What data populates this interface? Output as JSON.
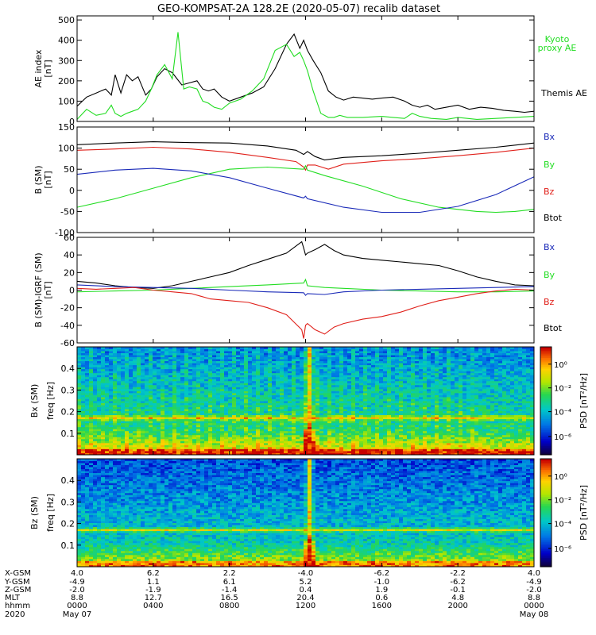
{
  "title": "GEO-KOMPSAT-2A 128.2E (2020-05-07) recalib dataset",
  "colors": {
    "black": "#000000",
    "blue": "#1a2ab8",
    "green": "#22dd22",
    "red": "#e0201a",
    "kyoto": "#22dd22"
  },
  "chart_data": [
    {
      "type": "line",
      "panel": "ae",
      "ylabel_lines": [
        "AE index",
        "[nT]"
      ],
      "ylim": [
        0,
        520
      ],
      "yticks": [
        0,
        100,
        200,
        300,
        400,
        500
      ],
      "x_hours": [
        0,
        24
      ],
      "series": [
        {
          "name": "Themis AE",
          "color": "#000000",
          "x": [
            0,
            0.5,
            1,
            1.5,
            1.8,
            2.0,
            2.3,
            2.6,
            2.9,
            3.2,
            3.6,
            3.9,
            4.2,
            4.6,
            5.0,
            5.5,
            5.9,
            6.3,
            6.6,
            6.9,
            7.2,
            7.6,
            8.0,
            8.6,
            9.2,
            9.8,
            10.4,
            11.0,
            11.4,
            11.7,
            11.9,
            12.1,
            12.4,
            12.8,
            13.2,
            13.6,
            14.0,
            14.5,
            15.0,
            15.5,
            16.0,
            16.6,
            17.2,
            17.6,
            18.0,
            18.4,
            18.8,
            19.4,
            20.0,
            20.6,
            21.2,
            21.8,
            22.4,
            23.0,
            23.5,
            24.0
          ],
          "y": [
            75,
            120,
            140,
            160,
            130,
            230,
            140,
            230,
            200,
            220,
            130,
            160,
            220,
            260,
            240,
            180,
            190,
            200,
            160,
            150,
            160,
            120,
            100,
            120,
            140,
            170,
            260,
            380,
            430,
            360,
            400,
            350,
            300,
            240,
            150,
            120,
            105,
            120,
            115,
            110,
            115,
            120,
            100,
            80,
            70,
            80,
            60,
            70,
            80,
            60,
            70,
            65,
            55,
            50,
            45,
            50
          ]
        },
        {
          "name": "Kyoto proxy AE",
          "color": "#22dd22",
          "x": [
            0,
            0.5,
            1,
            1.5,
            1.8,
            2.0,
            2.3,
            2.6,
            2.9,
            3.2,
            3.6,
            3.9,
            4.2,
            4.6,
            5.0,
            5.3,
            5.6,
            5.9,
            6.3,
            6.6,
            6.9,
            7.2,
            7.6,
            8.0,
            8.6,
            9.2,
            9.8,
            10.4,
            11.0,
            11.4,
            11.7,
            11.9,
            12.1,
            12.4,
            12.8,
            13.2,
            13.5,
            13.8,
            14.2,
            15.0,
            16.0,
            16.6,
            17.2,
            17.6,
            18.0,
            18.6,
            19.4,
            20.0,
            21.0,
            22.0,
            23.0,
            24.0
          ],
          "y": [
            10,
            60,
            30,
            40,
            80,
            40,
            25,
            40,
            50,
            60,
            100,
            160,
            230,
            280,
            210,
            440,
            160,
            170,
            160,
            100,
            90,
            70,
            60,
            90,
            110,
            150,
            210,
            350,
            380,
            320,
            340,
            300,
            250,
            150,
            40,
            20,
            20,
            30,
            20,
            20,
            25,
            20,
            15,
            40,
            25,
            15,
            10,
            20,
            10,
            15,
            20,
            25
          ]
        }
      ],
      "legend_lines": [
        "Themis AE"
      ],
      "kyoto_lines": [
        "Kyoto",
        "proxy AE"
      ]
    },
    {
      "type": "line",
      "panel": "b_sm",
      "ylabel_lines": [
        "B (SM)",
        "[nT]"
      ],
      "ylim": [
        -100,
        150
      ],
      "yticks": [
        -100,
        -50,
        0,
        50,
        100,
        150
      ],
      "x_hours": [
        0,
        24
      ],
      "series": [
        {
          "name": "Btot",
          "color": "#000000",
          "x": [
            0,
            2,
            4,
            6,
            8,
            10,
            11.5,
            11.9,
            12.1,
            12.5,
            13.0,
            14.0,
            16.0,
            18.0,
            20.0,
            22.0,
            24.0
          ],
          "y": [
            108,
            112,
            115,
            113,
            112,
            105,
            95,
            85,
            92,
            80,
            72,
            78,
            82,
            88,
            95,
            102,
            112
          ]
        },
        {
          "name": "Bz",
          "color": "#e0201a",
          "x": [
            0,
            2,
            4,
            6,
            8,
            10,
            11.5,
            11.9,
            12.0,
            12.1,
            12.5,
            13.2,
            14.0,
            16.0,
            18.0,
            20.0,
            22.0,
            24.0
          ],
          "y": [
            95,
            98,
            102,
            98,
            90,
            78,
            68,
            55,
            48,
            60,
            60,
            50,
            62,
            70,
            75,
            82,
            90,
            100
          ]
        },
        {
          "name": "By",
          "color": "#22dd22",
          "x": [
            0,
            2,
            4,
            6,
            8,
            10,
            11.9,
            12.0,
            12.1,
            13.0,
            15.0,
            17.0,
            19.0,
            21.0,
            22.0,
            23.0,
            24.0
          ],
          "y": [
            -40,
            -20,
            5,
            30,
            50,
            55,
            50,
            58,
            48,
            35,
            10,
            -20,
            -40,
            -50,
            -52,
            -50,
            -45
          ]
        },
        {
          "name": "Bx",
          "color": "#1a2ab8",
          "x": [
            0,
            2,
            4,
            6,
            8,
            10,
            11.9,
            12.0,
            12.1,
            14.0,
            16.0,
            18.0,
            20.0,
            22.0,
            24.0
          ],
          "y": [
            38,
            48,
            52,
            46,
            30,
            5,
            -18,
            -14,
            -20,
            -40,
            -52,
            -52,
            -38,
            -10,
            32
          ]
        }
      ],
      "legend": [
        "Bx",
        "By",
        "Bz",
        "Btot"
      ]
    },
    {
      "type": "line",
      "panel": "b_igrf",
      "ylabel_lines": [
        "B (SM)-IGRF (SM)",
        "[nT]"
      ],
      "ylim": [
        -60,
        60
      ],
      "yticks": [
        -60,
        -40,
        -20,
        0,
        20,
        40,
        60
      ],
      "x_hours": [
        0,
        24
      ],
      "series": [
        {
          "name": "Btot",
          "color": "#000000",
          "x": [
            0,
            1,
            2,
            3,
            4,
            5,
            6,
            7,
            8,
            9,
            10,
            11,
            11.8,
            11.9,
            12.0,
            12.1,
            12.5,
            13.0,
            13.5,
            14.0,
            15.0,
            16.0,
            17.0,
            18.0,
            19.0,
            20.0,
            21.0,
            22.0,
            23.0,
            24.0
          ],
          "y": [
            10,
            8,
            5,
            3,
            2,
            5,
            10,
            15,
            20,
            28,
            35,
            42,
            55,
            48,
            40,
            42,
            46,
            52,
            45,
            40,
            36,
            34,
            32,
            30,
            28,
            22,
            15,
            10,
            6,
            5
          ]
        },
        {
          "name": "By",
          "color": "#22dd22",
          "x": [
            0,
            2,
            4,
            6,
            8,
            10,
            11.9,
            12.0,
            12.1,
            13.0,
            14.0,
            16.0,
            18.0,
            20.0,
            22.0,
            24.0
          ],
          "y": [
            -2,
            -1,
            0,
            2,
            4,
            6,
            8,
            12,
            5,
            3,
            2,
            0,
            -1,
            -2,
            -2,
            -1
          ]
        },
        {
          "name": "Bx",
          "color": "#1a2ab8",
          "x": [
            0,
            2,
            4,
            6,
            8,
            10,
            11.9,
            12.0,
            12.1,
            13.0,
            14.0,
            16.0,
            18.0,
            20.0,
            22.0,
            24.0
          ],
          "y": [
            6,
            4,
            3,
            2,
            0,
            -2,
            -3,
            -6,
            -4,
            -5,
            -2,
            0,
            1,
            2,
            3,
            4
          ]
        },
        {
          "name": "Bz",
          "color": "#e0201a",
          "x": [
            0,
            1,
            2,
            3,
            4,
            5,
            6,
            7,
            8,
            9,
            10,
            11,
            11.8,
            11.9,
            12.0,
            12.1,
            12.5,
            13.0,
            13.5,
            14.0,
            15.0,
            16.0,
            17.0,
            18.0,
            19.0,
            20.0,
            21.0,
            22.0,
            23.0,
            24.0
          ],
          "y": [
            2,
            1,
            2,
            3,
            0,
            -2,
            -4,
            -10,
            -12,
            -14,
            -20,
            -28,
            -45,
            -55,
            -40,
            -38,
            -45,
            -50,
            -42,
            -38,
            -33,
            -30,
            -25,
            -18,
            -12,
            -8,
            -4,
            -1,
            1,
            0
          ]
        }
      ],
      "legend": [
        "Bx",
        "By",
        "Bz",
        "Btot"
      ]
    },
    {
      "type": "heatmap",
      "panel": "bx_spectrogram",
      "ylabel_lines": [
        "Bx (SM)",
        "freq [Hz]"
      ],
      "ylim": [
        0,
        0.5
      ],
      "yticks": [
        0.1,
        0.2,
        0.3,
        0.4
      ],
      "colorbar_label": "PSD [nT²/Hz]",
      "colorbar_ticks": [
        "10⁰",
        "10⁻²",
        "10⁻⁴",
        "10⁻⁶"
      ],
      "features": {
        "storm_hour": 12.0,
        "band_freq": 0.168
      }
    },
    {
      "type": "heatmap",
      "panel": "bz_spectrogram",
      "ylabel_lines": [
        "Bz (SM)",
        "freq [Hz]"
      ],
      "ylim": [
        0,
        0.5
      ],
      "yticks": [
        0.1,
        0.2,
        0.3,
        0.4
      ],
      "colorbar_label": "PSD [nT²/Hz]",
      "colorbar_ticks": [
        "10⁰",
        "10⁻²",
        "10⁻⁴",
        "10⁻⁶"
      ],
      "features": {
        "storm_hour": 12.0,
        "band_freq": 0.168
      }
    }
  ],
  "x_axis_table": {
    "row_labels": [
      "X-GSM",
      "Y-GSM",
      "Z-GSM",
      "MLT",
      "hhmm",
      "2020"
    ],
    "columns": [
      {
        "hour": 0,
        "values": [
          "4.0",
          "-4.9",
          "-2.0",
          "8.8",
          "0000",
          "May 07"
        ]
      },
      {
        "hour": 4,
        "values": [
          "6.2",
          "1.1",
          "-1.9",
          "12.7",
          "0400",
          ""
        ]
      },
      {
        "hour": 8,
        "values": [
          "2.2",
          "6.1",
          "-1.4",
          "16.5",
          "0800",
          ""
        ]
      },
      {
        "hour": 12,
        "values": [
          "-4.0",
          "5.2",
          "0.4",
          "20.4",
          "1200",
          ""
        ]
      },
      {
        "hour": 16,
        "values": [
          "-6.2",
          "-1.0",
          "1.9",
          "0.6",
          "1600",
          ""
        ]
      },
      {
        "hour": 20,
        "values": [
          "-2.2",
          "-6.2",
          "-0.1",
          "4.8",
          "2000",
          ""
        ]
      },
      {
        "hour": 24,
        "values": [
          "4.0",
          "-4.9",
          "-2.0",
          "8.8",
          "0000",
          "May 08"
        ]
      }
    ]
  }
}
